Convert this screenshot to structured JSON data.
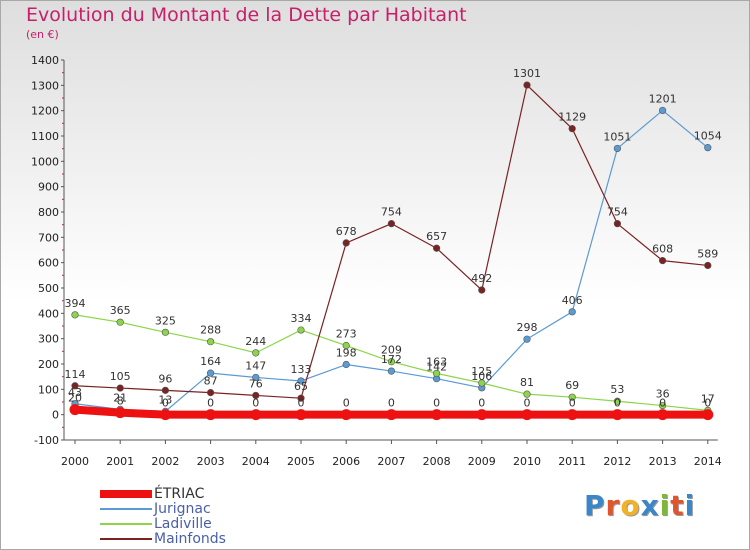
{
  "header": {
    "title": "Evolution du Montant de la Dette par Habitant",
    "subtitle": "(en €)"
  },
  "logo": {
    "text": "Proxiti",
    "letters": [
      "P",
      "r",
      "o",
      "x",
      "i",
      "t",
      "i"
    ],
    "colors": [
      "#3a86c8",
      "#e2542c",
      "#f2b227",
      "#3a86c8",
      "#7fb838",
      "#e2542c",
      "#3a86c8"
    ]
  },
  "chart_data": {
    "type": "line",
    "title": "Evolution du Montant de la Dette par Habitant",
    "ylabel": "(en €)",
    "xlabel": "",
    "x": [
      "2000",
      "2001",
      "2002",
      "2003",
      "2004",
      "2005",
      "2006",
      "2007",
      "2008",
      "2009",
      "2010",
      "2011",
      "2012",
      "2013",
      "2014"
    ],
    "yticks": [
      -100,
      0,
      100,
      200,
      300,
      400,
      500,
      600,
      700,
      800,
      900,
      1000,
      1100,
      1200,
      1300,
      1400
    ],
    "ylim": [
      -100,
      1400
    ],
    "grid": false,
    "legend_position": "bottom-left",
    "series": [
      {
        "name": "ÉTRIAC",
        "color": "#ee1111",
        "thick": true,
        "values": [
          20,
          8,
          0,
          0,
          0,
          0,
          0,
          0,
          0,
          0,
          0,
          0,
          0,
          0,
          0
        ],
        "labels": [
          "20",
          "8",
          "0",
          "0",
          "0",
          "0",
          "0",
          "0",
          "0",
          "0",
          "0",
          "0",
          "0",
          "0",
          "0"
        ]
      },
      {
        "name": "Jurignac",
        "color": "#5b9bd5",
        "thick": false,
        "values": [
          43,
          21,
          13,
          164,
          147,
          133,
          198,
          172,
          142,
          106,
          298,
          406,
          1051,
          1201,
          1054
        ],
        "labels": [
          "43",
          "21",
          "13",
          "164",
          "147",
          "133",
          "198",
          "172",
          "142",
          "106",
          "298",
          "406",
          "1051",
          "1201",
          "1054"
        ]
      },
      {
        "name": "Ladiville",
        "color": "#8cd54a",
        "thick": false,
        "values": [
          394,
          365,
          325,
          288,
          244,
          334,
          273,
          209,
          163,
          125,
          81,
          69,
          53,
          36,
          17
        ],
        "labels": [
          "394",
          "365",
          "325",
          "288",
          "244",
          "334",
          "273",
          "209",
          "163",
          "125",
          "81",
          "69",
          "53",
          "36",
          "17"
        ]
      },
      {
        "name": "Mainfonds",
        "color": "#7b2222",
        "thick": false,
        "values": [
          114,
          105,
          96,
          87,
          76,
          65,
          678,
          754,
          657,
          492,
          1301,
          1129,
          754,
          608,
          589
        ],
        "labels": [
          "114",
          "105",
          "96",
          "87",
          "76",
          "65",
          "678",
          "754",
          "657",
          "492",
          "1301",
          "1129",
          "754",
          "608",
          "589"
        ]
      }
    ]
  }
}
